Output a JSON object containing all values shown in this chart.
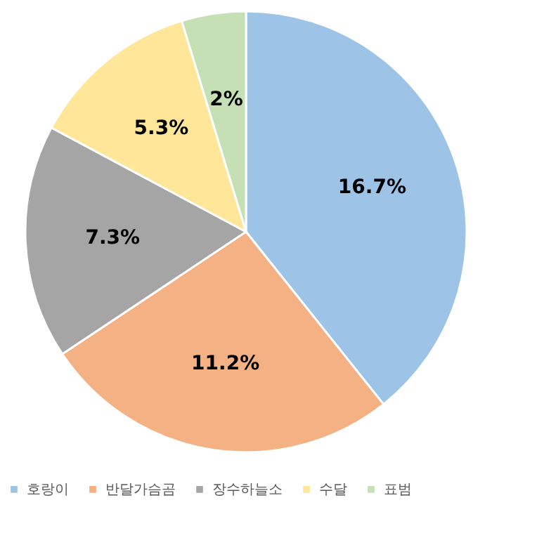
{
  "chart_data": {
    "type": "pie",
    "categories": [
      "호랑이",
      "반달가슴곰",
      "장수하늘소",
      "수달",
      "표범"
    ],
    "values": [
      16.7,
      11.2,
      7.3,
      5.3,
      2
    ],
    "value_labels": [
      "16.7%",
      "11.2%",
      "7.3%",
      "5.3%",
      "2%"
    ],
    "colors": [
      "#9dc3e6",
      "#f4b183",
      "#a5a5a5",
      "#ffe699",
      "#c5e0b4"
    ],
    "legend": "bottom"
  }
}
